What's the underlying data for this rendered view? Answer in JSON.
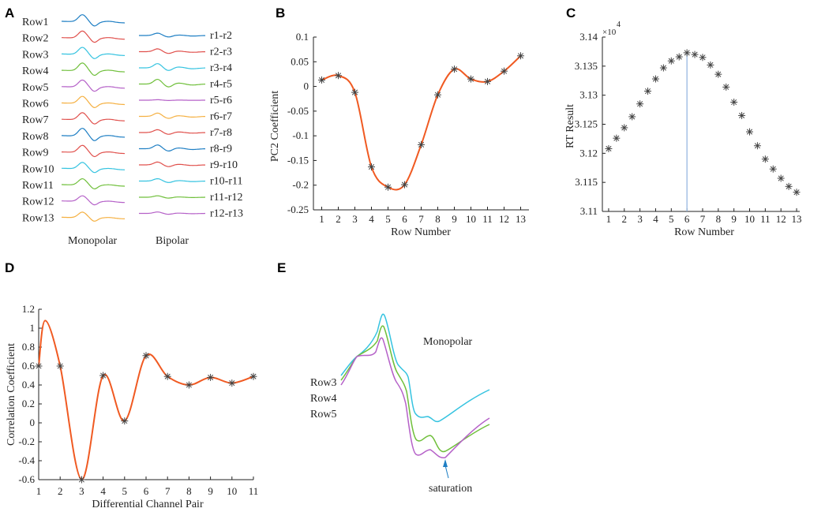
{
  "colors": {
    "curve": "#f05a22",
    "marker": "#444444",
    "cyan": "#35c3e0",
    "blue": "#1f7fc4",
    "red": "#e0504c",
    "green": "#6fbf3a",
    "purple": "#b561c8",
    "orange": "#f5b041",
    "vline": "#8fb3df"
  },
  "panel_labels": [
    "A",
    "B",
    "C",
    "D",
    "E"
  ],
  "chart_data": [
    {
      "id": "A",
      "type": "line",
      "title": "",
      "monopolar_label": "Monopolar",
      "bipolar_label": "Bipolar",
      "monopolar_rows": [
        "Row1",
        "Row2",
        "Row3",
        "Row4",
        "Row5",
        "Row6",
        "Row7",
        "Row8",
        "Row9",
        "Row10",
        "Row11",
        "Row12",
        "Row13"
      ],
      "bipolar_rows": [
        "r1-r2",
        "r2-r3",
        "r3-r4",
        "r4-r5",
        "r5-r6",
        "r6-r7",
        "r7-r8",
        "r8-r9",
        "r9-r10",
        "r10-r11",
        "r11-r12",
        "r12-r13"
      ],
      "monopolar_colors": [
        "blue",
        "red",
        "cyan",
        "green",
        "purple",
        "orange",
        "red",
        "blue",
        "red",
        "cyan",
        "green",
        "purple",
        "orange"
      ],
      "bipolar_colors": [
        "blue",
        "red",
        "cyan",
        "green",
        "purple",
        "orange",
        "red",
        "blue",
        "red",
        "cyan",
        "green",
        "purple"
      ],
      "monopolar_amplitude": [
        1.0,
        1.0,
        1.0,
        1.1,
        1.0,
        1.0,
        1.0,
        1.1,
        1.0,
        0.9,
        0.9,
        0.8,
        0.8
      ],
      "bipolar_amplitude": [
        0.5,
        0.6,
        0.9,
        1.0,
        0.1,
        0.7,
        0.6,
        0.8,
        0.6,
        0.5,
        0.3,
        0.3
      ]
    },
    {
      "id": "B",
      "type": "line",
      "xlabel": "Row Number",
      "ylabel": "PC2 Coefficient",
      "xlim": [
        0.5,
        13.5
      ],
      "ylim": [
        -0.25,
        0.1
      ],
      "xticks": [
        "1",
        "2",
        "3",
        "4",
        "5",
        "6",
        "7",
        "8",
        "9",
        "10",
        "11",
        "12",
        "13"
      ],
      "yticks": [
        "0.1",
        "0.05",
        "0",
        "-0.05",
        "-0.1",
        "-0.15",
        "-0.2",
        "-0.25"
      ],
      "ytick_values": [
        0.1,
        0.05,
        0,
        -0.05,
        -0.1,
        -0.15,
        -0.2,
        -0.25
      ],
      "x": [
        1,
        2,
        3,
        4,
        5,
        6,
        7,
        8,
        9,
        10,
        11,
        12,
        13
      ],
      "y": [
        0.013,
        0.022,
        -0.012,
        -0.163,
        -0.204,
        -0.199,
        -0.118,
        -0.017,
        0.035,
        0.015,
        0.01,
        0.031,
        0.062
      ]
    },
    {
      "id": "C",
      "type": "scatter",
      "xlabel": "Row Number",
      "ylabel": "RT Result",
      "xlim": [
        0.6,
        13.2
      ],
      "ylim": [
        3.11,
        3.14
      ],
      "scale_label": "×10",
      "scale_exp": "4",
      "xticks": [
        "1",
        "2",
        "3",
        "4",
        "5",
        "6",
        "7",
        "8",
        "9",
        "10",
        "11",
        "12",
        "13"
      ],
      "yticks": [
        "3.14",
        "3.135",
        "3.13",
        "3.125",
        "3.12",
        "3.115",
        "3.11"
      ],
      "ytick_values": [
        3.14,
        3.135,
        3.13,
        3.125,
        3.12,
        3.115,
        3.11
      ],
      "x": [
        1.0,
        1.5,
        2.0,
        2.5,
        3.0,
        3.5,
        4.0,
        4.5,
        5.0,
        5.5,
        6.0,
        6.5,
        7.0,
        7.5,
        8.0,
        8.5,
        9.0,
        9.5,
        10.0,
        10.5,
        11.0,
        11.5,
        12.0,
        12.5,
        13.0
      ],
      "y": [
        3.1208,
        3.1226,
        3.1244,
        3.1263,
        3.1285,
        3.1307,
        3.1328,
        3.1347,
        3.1359,
        3.1366,
        3.1373,
        3.137,
        3.1365,
        3.1352,
        3.1336,
        3.1314,
        3.1288,
        3.1265,
        3.1237,
        3.1213,
        3.119,
        3.1173,
        3.1157,
        3.1143,
        3.1133
      ],
      "vline_x": 6
    },
    {
      "id": "D",
      "type": "line",
      "xlabel": "Differential Channel Pair",
      "ylabel": "Correlation Coefficient",
      "xlim": [
        1,
        11
      ],
      "ylim": [
        -0.6,
        1.2
      ],
      "xticks": [
        "1",
        "2",
        "3",
        "4",
        "5",
        "6",
        "7",
        "8",
        "9",
        "10",
        "11"
      ],
      "yticks": [
        "1.2",
        "1",
        "0.8",
        "0.6",
        "0.4",
        "0.2",
        "0",
        "-0.2",
        "-0.4",
        "-0.6"
      ],
      "ytick_values": [
        1.2,
        1.0,
        0.8,
        0.6,
        0.4,
        0.2,
        0,
        -0.2,
        -0.4,
        -0.6
      ],
      "x": [
        1,
        2,
        3,
        4,
        5,
        6,
        7,
        8,
        9,
        10,
        11
      ],
      "y": [
        0.6,
        0.6,
        -0.6,
        0.5,
        0.02,
        0.71,
        0.49,
        0.4,
        0.48,
        0.42,
        0.49
      ],
      "curve_x": [
        1.0,
        1.3,
        2.0,
        3.0,
        4.0,
        5.0,
        6.0,
        7.0,
        8.0,
        9.0,
        10.0,
        11.0
      ],
      "curve_y": [
        0.6,
        1.08,
        0.6,
        -0.6,
        0.5,
        0.02,
        0.71,
        0.49,
        0.4,
        0.48,
        0.42,
        0.49
      ]
    },
    {
      "id": "E",
      "type": "line",
      "title": "Monopolar",
      "series": [
        {
          "name": "Row3",
          "color": "cyan"
        },
        {
          "name": "Row4",
          "color": "green"
        },
        {
          "name": "Row5",
          "color": "purple"
        }
      ],
      "annotation": "saturation"
    }
  ]
}
